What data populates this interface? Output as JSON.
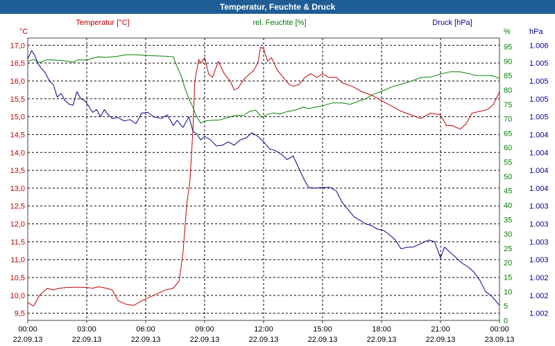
{
  "title": "Temperatur, Feuchte & Druck",
  "chart_data": {
    "type": "line",
    "title": "Temperatur, Feuchte & Druck",
    "x_ticks": [
      {
        "time": "00:00",
        "date": "22.09.13"
      },
      {
        "time": "03:00",
        "date": "22.09.13"
      },
      {
        "time": "06:00",
        "date": "22.09.13"
      },
      {
        "time": "09:00",
        "date": "22.09.13"
      },
      {
        "time": "12:00",
        "date": "22.09.13"
      },
      {
        "time": "15:00",
        "date": "22.09.13"
      },
      {
        "time": "18:00",
        "date": "22.09.13"
      },
      {
        "time": "21:00",
        "date": "22.09.13"
      },
      {
        "time": "00:00",
        "date": "23.09.13"
      }
    ],
    "x_range_hours": [
      0,
      24
    ],
    "grid": true,
    "axes": {
      "temperature": {
        "label": "Temperatur [°C]",
        "unit": "°C",
        "range": [
          9.3,
          17.2
        ],
        "color": "#c00000",
        "ticks": [
          "9,5",
          "10,0",
          "10,5",
          "11,0",
          "11,5",
          "12,0",
          "12,5",
          "13,0",
          "13,5",
          "14,0",
          "14,5",
          "15,0",
          "15,5",
          "16,0",
          "16,5",
          "17,0"
        ]
      },
      "humidity": {
        "label": "rel. Feuchte [%]",
        "unit": "%",
        "range": [
          0,
          98
        ],
        "color": "#008000",
        "ticks": [
          "0",
          "5",
          "10",
          "15",
          "20",
          "25",
          "30",
          "35",
          "40",
          "45",
          "50",
          "55",
          "60",
          "65",
          "70",
          "75",
          "80",
          "85",
          "90",
          "95"
        ]
      },
      "pressure": {
        "label": "Druck [hPa]",
        "unit": "hPa",
        "color": "#00008b",
        "ticks": [
          "1.002",
          "1.002",
          "1.002",
          "1.003",
          "1.003",
          "1.003",
          "1.003",
          "1.004",
          "1.004",
          "1.004",
          "1.004",
          "1.005",
          "1.005",
          "1.005",
          "1.005",
          "1.006"
        ]
      }
    },
    "series": [
      {
        "name": "Temperatur [°C]",
        "axis": "temperature",
        "color": "#c00000",
        "points": [
          [
            0,
            9.8
          ],
          [
            0.3,
            9.7
          ],
          [
            0.6,
            10.0
          ],
          [
            1.0,
            10.2
          ],
          [
            1.3,
            10.15
          ],
          [
            1.6,
            10.2
          ],
          [
            2.0,
            10.22
          ],
          [
            2.5,
            10.23
          ],
          [
            3.0,
            10.22
          ],
          [
            3.3,
            10.2
          ],
          [
            3.6,
            10.24
          ],
          [
            4.0,
            10.2
          ],
          [
            4.3,
            10.15
          ],
          [
            4.6,
            9.85
          ],
          [
            5.0,
            9.75
          ],
          [
            5.4,
            9.72
          ],
          [
            5.8,
            9.85
          ],
          [
            6.2,
            9.95
          ],
          [
            6.6,
            10.05
          ],
          [
            7.0,
            10.15
          ],
          [
            7.4,
            10.2
          ],
          [
            7.7,
            10.4
          ],
          [
            7.9,
            11.2
          ],
          [
            8.1,
            12.6
          ],
          [
            8.25,
            13.2
          ],
          [
            8.4,
            14.6
          ],
          [
            8.5,
            16.0
          ],
          [
            8.7,
            16.6
          ],
          [
            8.8,
            16.5
          ],
          [
            9.0,
            16.65
          ],
          [
            9.2,
            16.2
          ],
          [
            9.4,
            16.1
          ],
          [
            9.7,
            16.55
          ],
          [
            10.0,
            16.2
          ],
          [
            10.3,
            16.0
          ],
          [
            10.5,
            15.75
          ],
          [
            10.7,
            15.8
          ],
          [
            11.0,
            16.05
          ],
          [
            11.3,
            16.2
          ],
          [
            11.5,
            16.3
          ],
          [
            11.7,
            16.5
          ],
          [
            11.85,
            16.95
          ],
          [
            12.0,
            16.9
          ],
          [
            12.2,
            16.55
          ],
          [
            12.4,
            16.65
          ],
          [
            12.7,
            16.3
          ],
          [
            13.0,
            16.1
          ],
          [
            13.3,
            15.9
          ],
          [
            13.5,
            15.85
          ],
          [
            13.8,
            15.9
          ],
          [
            14.1,
            16.1
          ],
          [
            14.4,
            16.2
          ],
          [
            14.7,
            16.1
          ],
          [
            15.0,
            16.2
          ],
          [
            15.3,
            16.1
          ],
          [
            15.7,
            16.1
          ],
          [
            16.0,
            15.95
          ],
          [
            16.5,
            15.85
          ],
          [
            17.0,
            15.7
          ],
          [
            17.5,
            15.6
          ],
          [
            18.0,
            15.45
          ],
          [
            18.5,
            15.3
          ],
          [
            19.0,
            15.15
          ],
          [
            19.5,
            15.05
          ],
          [
            20.0,
            14.95
          ],
          [
            20.5,
            15.1
          ],
          [
            21.0,
            15.05
          ],
          [
            21.3,
            14.75
          ],
          [
            21.6,
            14.75
          ],
          [
            22.0,
            14.65
          ],
          [
            22.3,
            14.8
          ],
          [
            22.6,
            15.1
          ],
          [
            23.0,
            15.15
          ],
          [
            23.4,
            15.2
          ],
          [
            23.7,
            15.35
          ],
          [
            24.0,
            15.7
          ]
        ]
      },
      {
        "name": "rel. Feuchte [%]",
        "axis": "humidity",
        "color": "#008000",
        "points": [
          [
            0,
            90
          ],
          [
            0.3,
            90.5
          ],
          [
            0.6,
            89.5
          ],
          [
            1.0,
            90.5
          ],
          [
            1.5,
            90.3
          ],
          [
            2.0,
            90.0
          ],
          [
            2.3,
            89.6
          ],
          [
            2.6,
            90.5
          ],
          [
            3.0,
            90.3
          ],
          [
            3.3,
            91.0
          ],
          [
            3.6,
            91.5
          ],
          [
            4.0,
            91.3
          ],
          [
            4.5,
            91.6
          ],
          [
            5.0,
            92.2
          ],
          [
            5.5,
            92.2
          ],
          [
            6.0,
            92.0
          ],
          [
            6.5,
            91.8
          ],
          [
            7.0,
            91.7
          ],
          [
            7.4,
            91.5
          ],
          [
            7.6,
            88.0
          ],
          [
            7.8,
            85.0
          ],
          [
            8.0,
            80.5
          ],
          [
            8.2,
            77.0
          ],
          [
            8.4,
            74.0
          ],
          [
            8.6,
            70.5
          ],
          [
            8.8,
            68.5
          ],
          [
            9.0,
            69.2
          ],
          [
            9.4,
            69.5
          ],
          [
            9.8,
            69.6
          ],
          [
            10.2,
            70.5
          ],
          [
            10.6,
            71.2
          ],
          [
            11.0,
            71.2
          ],
          [
            11.3,
            72.6
          ],
          [
            11.6,
            73.0
          ],
          [
            11.9,
            70.5
          ],
          [
            12.2,
            71.5
          ],
          [
            12.5,
            72.0
          ],
          [
            12.8,
            71.6
          ],
          [
            13.2,
            72.5
          ],
          [
            13.6,
            73.0
          ],
          [
            14.0,
            74.0
          ],
          [
            14.3,
            73.5
          ],
          [
            14.6,
            74.0
          ],
          [
            15.0,
            74.5
          ],
          [
            15.5,
            75.5
          ],
          [
            16.0,
            75.5
          ],
          [
            16.4,
            75.0
          ],
          [
            16.8,
            76.0
          ],
          [
            17.2,
            77.0
          ],
          [
            17.6,
            78.5
          ],
          [
            18.0,
            79.5
          ],
          [
            18.5,
            81.0
          ],
          [
            19.0,
            82.0
          ],
          [
            19.5,
            83.0
          ],
          [
            20.0,
            84.3
          ],
          [
            20.5,
            84.5
          ],
          [
            21.0,
            85.5
          ],
          [
            21.5,
            86.3
          ],
          [
            22.0,
            86.3
          ],
          [
            22.4,
            85.7
          ],
          [
            22.8,
            85.0
          ],
          [
            23.2,
            85.0
          ],
          [
            23.6,
            85.0
          ],
          [
            24.0,
            84.0
          ]
        ]
      },
      {
        "name": "Druck [hPa]",
        "axis": "pressure",
        "color": "#00008b",
        "points": [
          [
            0,
            16.62
          ],
          [
            0.2,
            16.85
          ],
          [
            0.35,
            16.72
          ],
          [
            0.5,
            16.5
          ],
          [
            0.7,
            16.35
          ],
          [
            0.9,
            16.22
          ],
          [
            1.1,
            16.0
          ],
          [
            1.3,
            15.9
          ],
          [
            1.5,
            15.55
          ],
          [
            1.7,
            15.65
          ],
          [
            1.9,
            15.45
          ],
          [
            2.1,
            15.35
          ],
          [
            2.3,
            15.32
          ],
          [
            2.5,
            15.7
          ],
          [
            2.7,
            15.5
          ],
          [
            2.9,
            15.45
          ],
          [
            3.1,
            15.3
          ],
          [
            3.3,
            15.12
          ],
          [
            3.5,
            15.2
          ],
          [
            3.7,
            15.0
          ],
          [
            3.9,
            15.2
          ],
          [
            4.1,
            15.05
          ],
          [
            4.3,
            14.95
          ],
          [
            4.6,
            14.98
          ],
          [
            4.9,
            14.88
          ],
          [
            5.2,
            14.92
          ],
          [
            5.5,
            14.8
          ],
          [
            5.8,
            15.1
          ],
          [
            6.1,
            15.12
          ],
          [
            6.4,
            15.0
          ],
          [
            6.8,
            14.95
          ],
          [
            7.1,
            15.05
          ],
          [
            7.4,
            14.75
          ],
          [
            7.6,
            14.9
          ],
          [
            7.9,
            14.7
          ],
          [
            8.2,
            15.0
          ],
          [
            8.4,
            14.6
          ],
          [
            8.6,
            14.52
          ],
          [
            8.8,
            14.35
          ],
          [
            9.0,
            14.45
          ],
          [
            9.3,
            14.35
          ],
          [
            9.6,
            14.18
          ],
          [
            9.9,
            14.2
          ],
          [
            10.2,
            14.3
          ],
          [
            10.5,
            14.2
          ],
          [
            10.8,
            14.35
          ],
          [
            11.1,
            14.4
          ],
          [
            11.4,
            14.55
          ],
          [
            11.7,
            14.45
          ],
          [
            12.0,
            14.3
          ],
          [
            12.3,
            14.1
          ],
          [
            12.6,
            14.05
          ],
          [
            12.9,
            13.95
          ],
          [
            13.2,
            13.8
          ],
          [
            13.5,
            13.9
          ],
          [
            13.8,
            13.55
          ],
          [
            14.1,
            13.2
          ],
          [
            14.3,
            13.02
          ],
          [
            14.6,
            13.0
          ],
          [
            15.0,
            13.02
          ],
          [
            15.4,
            13.02
          ],
          [
            15.7,
            12.92
          ],
          [
            16.0,
            12.6
          ],
          [
            16.3,
            12.4
          ],
          [
            16.6,
            12.2
          ],
          [
            16.9,
            12.1
          ],
          [
            17.2,
            12.0
          ],
          [
            17.5,
            11.95
          ],
          [
            17.8,
            11.85
          ],
          [
            18.1,
            11.82
          ],
          [
            18.4,
            11.7
          ],
          [
            18.7,
            11.55
          ],
          [
            19.0,
            11.3
          ],
          [
            19.3,
            11.35
          ],
          [
            19.6,
            11.35
          ],
          [
            20.0,
            11.45
          ],
          [
            20.4,
            11.55
          ],
          [
            20.7,
            11.5
          ],
          [
            21.0,
            11.05
          ],
          [
            21.2,
            11.35
          ],
          [
            21.5,
            11.2
          ],
          [
            21.8,
            11.05
          ],
          [
            22.1,
            10.9
          ],
          [
            22.4,
            10.8
          ],
          [
            22.7,
            10.65
          ],
          [
            23.0,
            10.42
          ],
          [
            23.3,
            10.1
          ],
          [
            23.6,
            9.98
          ],
          [
            24.0,
            9.72
          ]
        ]
      }
    ]
  }
}
